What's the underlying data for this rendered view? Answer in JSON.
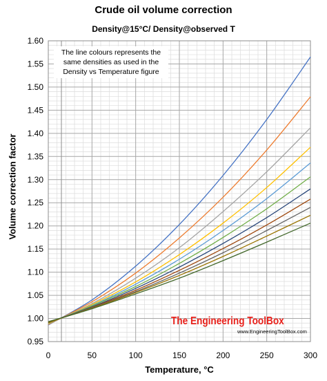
{
  "chart_data": {
    "type": "line",
    "title": "Crude oil volume correction",
    "subtitle": "Density@15°C/ Density@observed T",
    "xlabel": "Temperature, °C",
    "ylabel": "Volume correction factor",
    "xlim": [
      0,
      300
    ],
    "ylim": [
      0.95,
      1.6
    ],
    "xticks": [
      "0",
      "50",
      "100",
      "150",
      "200",
      "250",
      "300"
    ],
    "yticks": [
      "0.95",
      "1.00",
      "1.05",
      "1.10",
      "1.15",
      "1.20",
      "1.25",
      "1.30",
      "1.35",
      "1.40",
      "1.45",
      "1.50",
      "1.55",
      "1.60"
    ],
    "grid": true,
    "reference_temperature": 15,
    "series": [
      {
        "color": "#4472c4",
        "values": [
          [
            0,
            0.986
          ],
          [
            50,
            1.04
          ],
          [
            100,
            1.113
          ],
          [
            150,
            1.203
          ],
          [
            200,
            1.309
          ],
          [
            250,
            1.43
          ],
          [
            300,
            1.565
          ]
        ]
      },
      {
        "color": "#ed7d31",
        "values": [
          [
            0,
            0.987
          ],
          [
            50,
            1.036
          ],
          [
            100,
            1.098
          ],
          [
            150,
            1.174
          ],
          [
            200,
            1.262
          ],
          [
            250,
            1.364
          ],
          [
            300,
            1.479
          ]
        ]
      },
      {
        "color": "#a5a5a5",
        "values": [
          [
            0,
            0.988
          ],
          [
            50,
            1.032
          ],
          [
            100,
            1.087
          ],
          [
            150,
            1.153
          ],
          [
            200,
            1.231
          ],
          [
            250,
            1.317
          ],
          [
            300,
            1.412
          ]
        ]
      },
      {
        "color": "#ffc000",
        "values": [
          [
            0,
            0.989
          ],
          [
            50,
            1.03
          ],
          [
            100,
            1.079
          ],
          [
            150,
            1.138
          ],
          [
            200,
            1.206
          ],
          [
            250,
            1.283
          ],
          [
            300,
            1.37
          ]
        ]
      },
      {
        "color": "#5b9bd5",
        "values": [
          [
            0,
            0.99
          ],
          [
            50,
            1.028
          ],
          [
            100,
            1.074
          ],
          [
            150,
            1.128
          ],
          [
            200,
            1.19
          ],
          [
            250,
            1.259
          ],
          [
            300,
            1.336
          ]
        ]
      },
      {
        "color": "#70ad47",
        "values": [
          [
            0,
            0.99
          ],
          [
            50,
            1.027
          ],
          [
            100,
            1.069
          ],
          [
            150,
            1.119
          ],
          [
            200,
            1.175
          ],
          [
            250,
            1.237
          ],
          [
            300,
            1.306
          ]
        ]
      },
      {
        "color": "#264478",
        "values": [
          [
            0,
            0.991
          ],
          [
            50,
            1.025
          ],
          [
            100,
            1.065
          ],
          [
            150,
            1.111
          ],
          [
            200,
            1.162
          ],
          [
            250,
            1.218
          ],
          [
            300,
            1.28
          ]
        ]
      },
      {
        "color": "#9e480e",
        "values": [
          [
            0,
            0.991
          ],
          [
            50,
            1.024
          ],
          [
            100,
            1.061
          ],
          [
            150,
            1.104
          ],
          [
            200,
            1.151
          ],
          [
            250,
            1.202
          ],
          [
            300,
            1.258
          ]
        ]
      },
      {
        "color": "#636363",
        "values": [
          [
            0,
            0.992
          ],
          [
            50,
            1.023
          ],
          [
            100,
            1.058
          ],
          [
            150,
            1.098
          ],
          [
            200,
            1.142
          ],
          [
            250,
            1.19
          ],
          [
            300,
            1.24
          ]
        ]
      },
      {
        "color": "#997300",
        "values": [
          [
            0,
            0.992
          ],
          [
            50,
            1.022
          ],
          [
            100,
            1.056
          ],
          [
            150,
            1.093
          ],
          [
            200,
            1.134
          ],
          [
            250,
            1.178
          ],
          [
            300,
            1.223
          ]
        ]
      },
      {
        "color": "#43682b",
        "values": [
          [
            0,
            0.993
          ],
          [
            50,
            1.021
          ],
          [
            100,
            1.053
          ],
          [
            150,
            1.087
          ],
          [
            200,
            1.125
          ],
          [
            250,
            1.165
          ],
          [
            300,
            1.206
          ]
        ]
      }
    ],
    "annotation": "The line colours represents the same densities as used in the Density vs Temperature figure"
  },
  "watermark": {
    "main": "The Engineering ToolBox",
    "url": "www.EngineeringToolBox.com"
  }
}
